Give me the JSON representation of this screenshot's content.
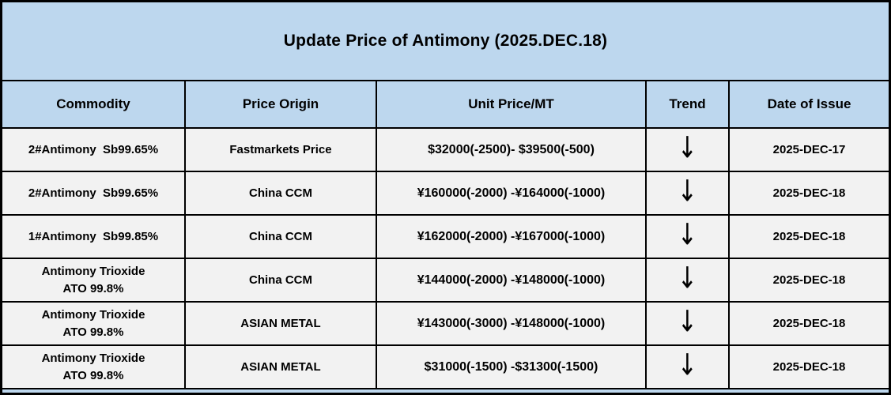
{
  "title": "Update Price of Antimony (2025.DEC.18)",
  "colors": {
    "band_blue": "#bdd7ee",
    "row_gray": "#f2f2f2",
    "border_black": "#000000",
    "text_black": "#000000"
  },
  "icons": {
    "trend_down": "down-arrow"
  },
  "table": {
    "headers": {
      "commodity": "Commodity",
      "origin": "Price Origin",
      "price": "Unit Price/MT",
      "trend": "Trend",
      "date": "Date of Issue"
    },
    "rows": [
      {
        "commodity": "2#Antimony  Sb99.65%",
        "origin": "Fastmarkets Price",
        "price": "$32000(-2500)- $39500(-500)",
        "trend": "↓",
        "date": "2025-DEC-17"
      },
      {
        "commodity": "2#Antimony  Sb99.65%",
        "origin": "China CCM",
        "price": "¥160000(-2000) -¥164000(-1000)",
        "trend": "↓",
        "date": "2025-DEC-18"
      },
      {
        "commodity": "1#Antimony  Sb99.85%",
        "origin": "China CCM",
        "price": "¥162000(-2000) -¥167000(-1000)",
        "trend": "↓",
        "date": "2025-DEC-18"
      },
      {
        "commodity": "Antimony Trioxide\nATO 99.8%",
        "origin": "China CCM",
        "price": "¥144000(-2000) -¥148000(-1000)",
        "trend": "↓",
        "date": "2025-DEC-18"
      },
      {
        "commodity": "Antimony Trioxide\nATO 99.8%",
        "origin": "ASIAN METAL",
        "price": "¥143000(-3000) -¥148000(-1000)",
        "trend": "↓",
        "date": "2025-DEC-18"
      },
      {
        "commodity": "Antimony Trioxide\nATO 99.8%",
        "origin": "ASIAN METAL",
        "price": "$31000(-1500) -$31300(-1500)",
        "trend": "↓",
        "date": "2025-DEC-18"
      }
    ]
  }
}
